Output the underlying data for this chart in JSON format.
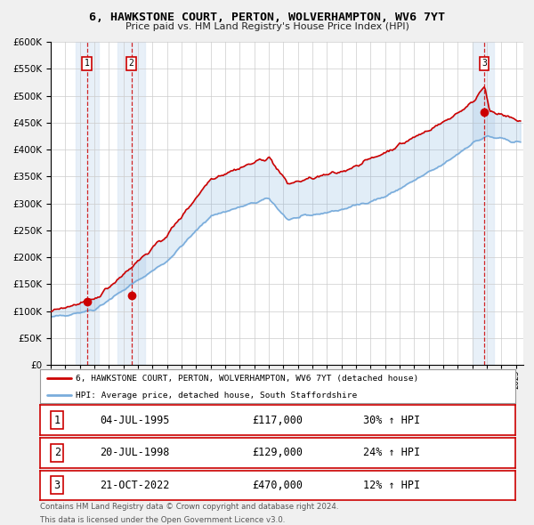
{
  "title": "6, HAWKSTONE COURT, PERTON, WOLVERHAMPTON, WV6 7YT",
  "subtitle": "Price paid vs. HM Land Registry's House Price Index (HPI)",
  "legend_label_red": "6, HAWKSTONE COURT, PERTON, WOLVERHAMPTON, WV6 7YT (detached house)",
  "legend_label_blue": "HPI: Average price, detached house, South Staffordshire",
  "footer1": "Contains HM Land Registry data © Crown copyright and database right 2024.",
  "footer2": "This data is licensed under the Open Government Licence v3.0.",
  "purchases": [
    {
      "num": 1,
      "date": "04-JUL-1995",
      "price": "£117,000",
      "pct": "30% ↑ HPI",
      "year": 1995.5,
      "price_val": 117000
    },
    {
      "num": 2,
      "date": "20-JUL-1998",
      "price": "£129,000",
      "pct": "24% ↑ HPI",
      "year": 1998.55,
      "price_val": 129000
    },
    {
      "num": 3,
      "date": "21-OCT-2022",
      "price": "£470,000",
      "pct": "12% ↑ HPI",
      "year": 2022.8,
      "price_val": 470000
    }
  ],
  "ylim": [
    0,
    600000
  ],
  "xlim_start": 1993.0,
  "xlim_end": 2025.5,
  "color_red": "#cc0000",
  "color_blue": "#7aaddc",
  "color_shading": "#dde8f5",
  "color_vline": "#cc0000",
  "bg_color": "#f0f0f0",
  "plot_bg": "#ffffff",
  "grid_color": "#cccccc"
}
